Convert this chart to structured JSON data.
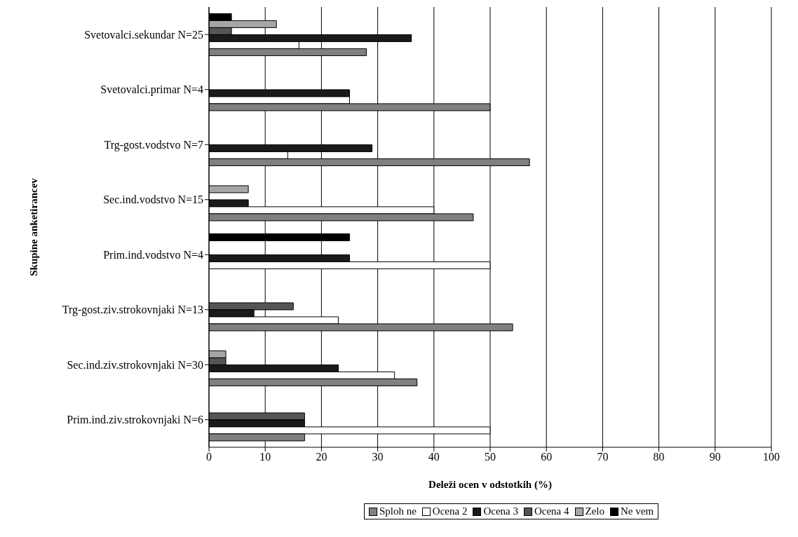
{
  "chart_data": {
    "type": "bar",
    "orientation": "horizontal",
    "xlabel": "Deleži ocen v odstotkih (%)",
    "ylabel": "Skupine anketirancev",
    "categories": [
      "Svetovalci.sekundar N=25",
      "Svetovalci.primar N=4",
      "Trg-gost.vodstvo N=7",
      "Sec.ind.vodstvo N=15",
      "Prim.ind.vodstvo N=4",
      "Trg-gost.ziv.strokovnjaki N=13",
      "Sec.ind.ziv.strokovnjaki N=30",
      "Prim.ind.ziv.strokovnjaki N=6"
    ],
    "series": [
      {
        "name": "Sploh ne",
        "color": "#808080",
        "values": [
          28,
          50,
          57,
          47,
          0,
          54,
          37,
          17
        ]
      },
      {
        "name": "Ocena 2",
        "color": "#ffffff",
        "values": [
          16,
          25,
          14,
          40,
          50,
          23,
          33,
          50
        ]
      },
      {
        "name": "Ocena 3",
        "color": "#1a1a1a",
        "values": [
          36,
          25,
          29,
          7,
          25,
          8,
          23,
          17
        ]
      },
      {
        "name": "Ocena 4",
        "color": "#555555",
        "values": [
          4,
          0,
          0,
          0,
          0,
          15,
          3,
          17
        ]
      },
      {
        "name": "Zelo",
        "color": "#a6a6a6",
        "values": [
          12,
          0,
          0,
          7,
          0,
          0,
          3,
          0
        ]
      },
      {
        "name": "Ne vem",
        "color": "#000000",
        "values": [
          4,
          0,
          0,
          0,
          25,
          0,
          0,
          0
        ]
      }
    ],
    "xlim": [
      0,
      100
    ],
    "xticks": [
      0,
      10,
      20,
      30,
      40,
      50,
      60,
      70,
      80,
      90,
      100
    ],
    "grid": "x",
    "legend": "bottom"
  }
}
